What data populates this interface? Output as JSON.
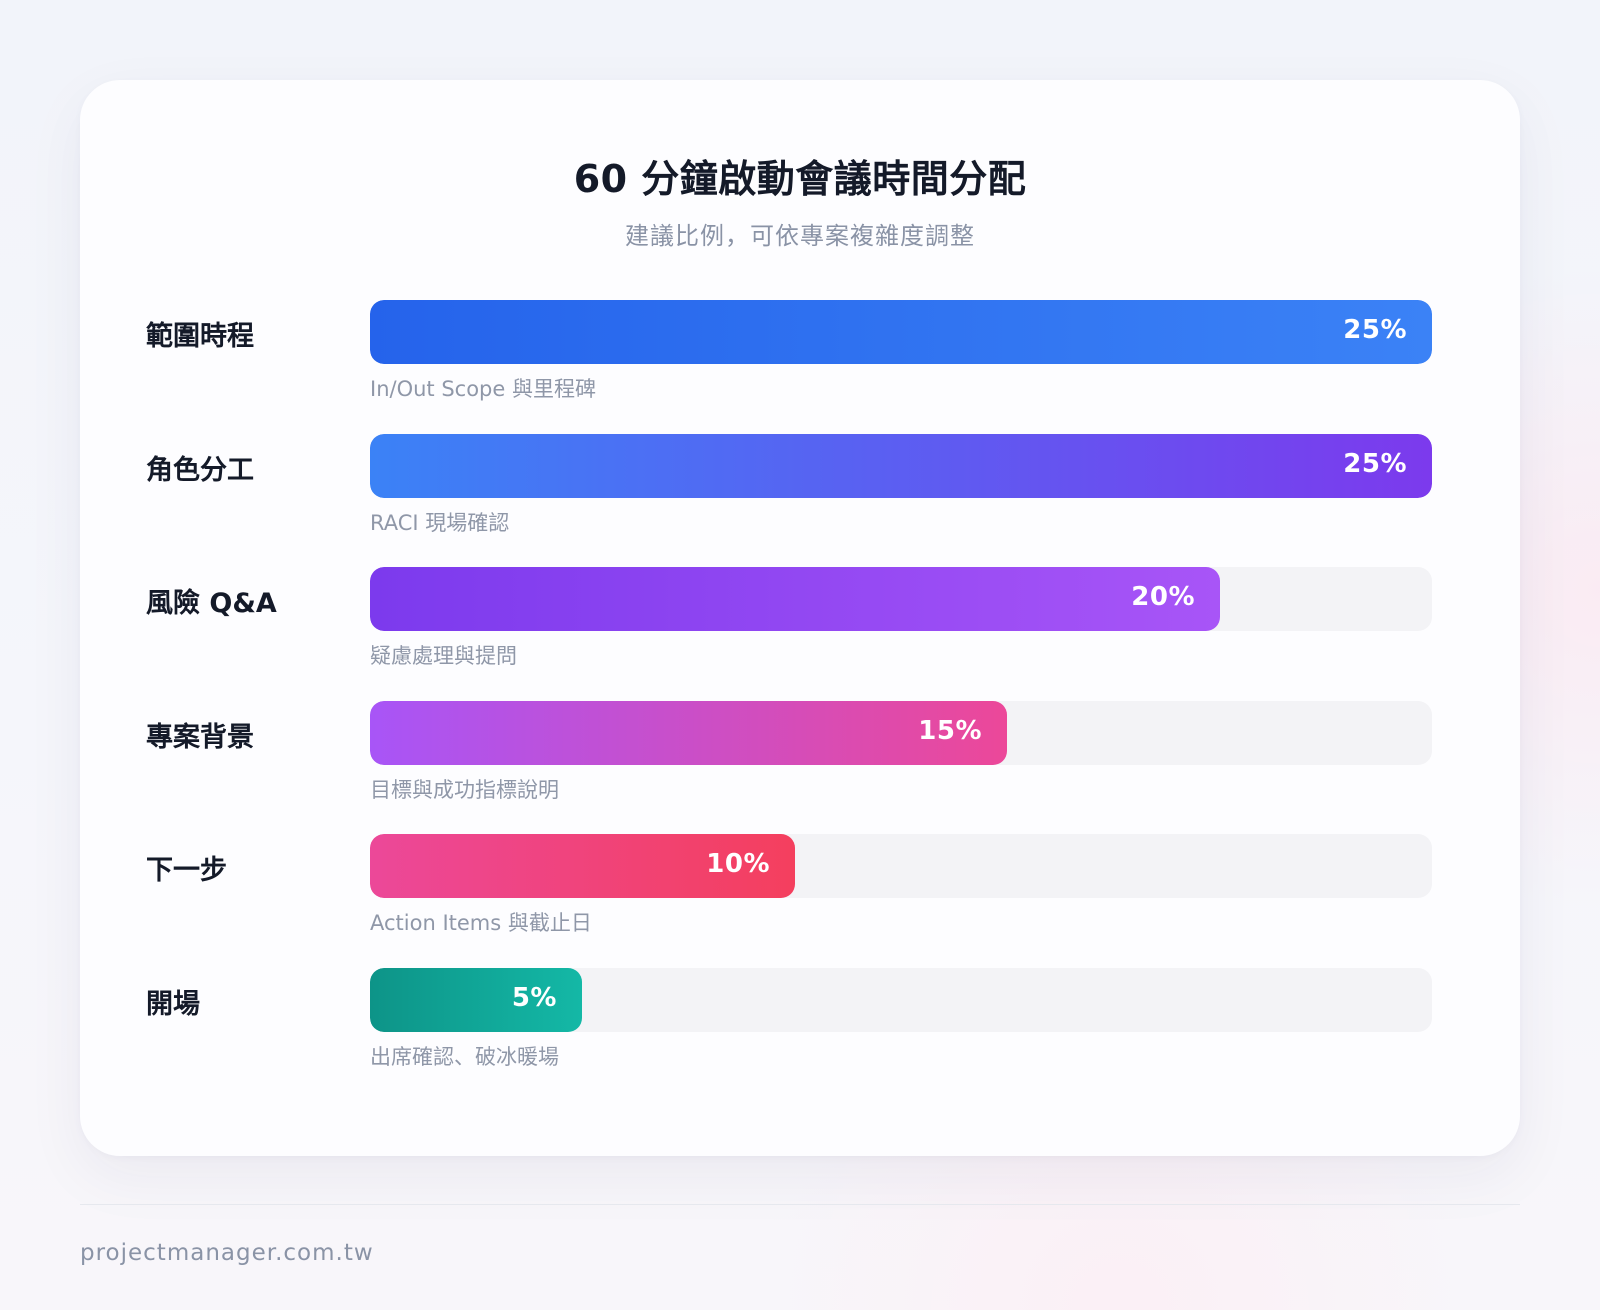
{
  "chart_data": {
    "type": "bar",
    "orientation": "horizontal",
    "title": "60 分鐘啟動會議時間分配",
    "subtitle": "建議比例，可依專案複雜度調整",
    "xlim": [
      0,
      25
    ],
    "categories": [
      "範圍時程",
      "角色分工",
      "風險 Q&A",
      "專案背景",
      "下一步",
      "開場"
    ],
    "values": [
      25,
      25,
      20,
      15,
      10,
      5
    ],
    "value_labels": [
      "25%",
      "25%",
      "20%",
      "15%",
      "10%",
      "5%"
    ],
    "annotations": [
      "In/Out Scope 與里程碑",
      "RACI 現場確認",
      "疑慮處理與提問",
      "目標與成功指標說明",
      "Action Items 與截止日",
      "出席確認、破冰暖場"
    ],
    "bar_gradients": [
      [
        "#2563eb",
        "#3b82f6"
      ],
      [
        "#3b82f6",
        "#7c3aed"
      ],
      [
        "#7c3aed",
        "#a855f7"
      ],
      [
        "#a855f7",
        "#ec4899"
      ],
      [
        "#ec4899",
        "#f43f5e"
      ],
      [
        "#0d9488",
        "#14b8a6"
      ]
    ],
    "track_color": "#f3f3f6",
    "grid": false,
    "legend": "none"
  },
  "footer": {
    "site": "projectmanager.com.tw"
  }
}
